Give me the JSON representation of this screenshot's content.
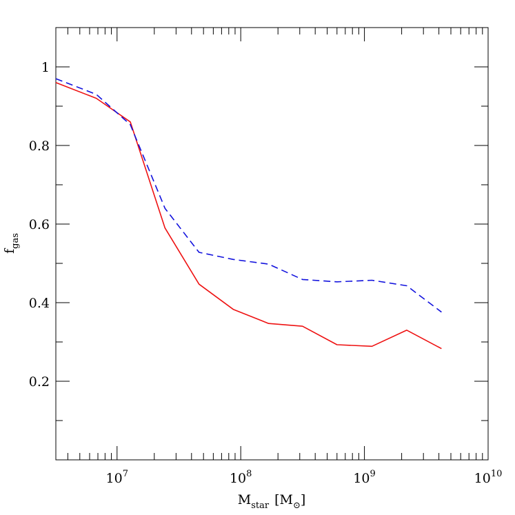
{
  "chart_data": {
    "type": "line",
    "title": "",
    "xscale": "log",
    "xlim": [
      3200000,
      10000000000
    ],
    "ylim": [
      0,
      1.1
    ],
    "grid": false,
    "legend": "none",
    "xlabel": {
      "main": "M",
      "sub": "star",
      "unit_open": "[M",
      "unit_sub": "⊙",
      "unit_close": "]"
    },
    "ylabel": {
      "main": "f",
      "sub": "gas"
    },
    "xticks": [
      {
        "value": 10000000,
        "base": "10",
        "exp": "7"
      },
      {
        "value": 100000000,
        "base": "10",
        "exp": "8"
      },
      {
        "value": 1000000000,
        "base": "10",
        "exp": "9"
      },
      {
        "value": 10000000000,
        "base": "10",
        "exp": "10"
      }
    ],
    "yticks": [
      {
        "value": 0.2,
        "label": "0.2"
      },
      {
        "value": 0.4,
        "label": "0.4"
      },
      {
        "value": 0.6,
        "label": "0.6"
      },
      {
        "value": 0.8,
        "label": "0.8"
      },
      {
        "value": 1.0,
        "label": "1"
      }
    ],
    "series": [
      {
        "color": "#ee1111",
        "dash": "solid",
        "x": [
          3200000,
          6800000,
          12800000,
          24400000,
          46000000,
          87000000,
          168000000,
          316000000,
          600000000,
          1150000000,
          2200000000,
          4200000000
        ],
        "y": [
          0.96,
          0.92,
          0.86,
          0.59,
          0.447,
          0.383,
          0.347,
          0.34,
          0.293,
          0.289,
          0.33,
          0.283
        ]
      },
      {
        "color": "#1111dd",
        "dash": "dashed",
        "x": [
          3200000,
          6800000,
          12800000,
          24400000,
          46000000,
          87000000,
          168000000,
          316000000,
          600000000,
          1150000000,
          2200000000,
          4200000000
        ],
        "y": [
          0.97,
          0.93,
          0.853,
          0.64,
          0.528,
          0.51,
          0.498,
          0.459,
          0.453,
          0.457,
          0.443,
          0.376
        ]
      }
    ]
  }
}
